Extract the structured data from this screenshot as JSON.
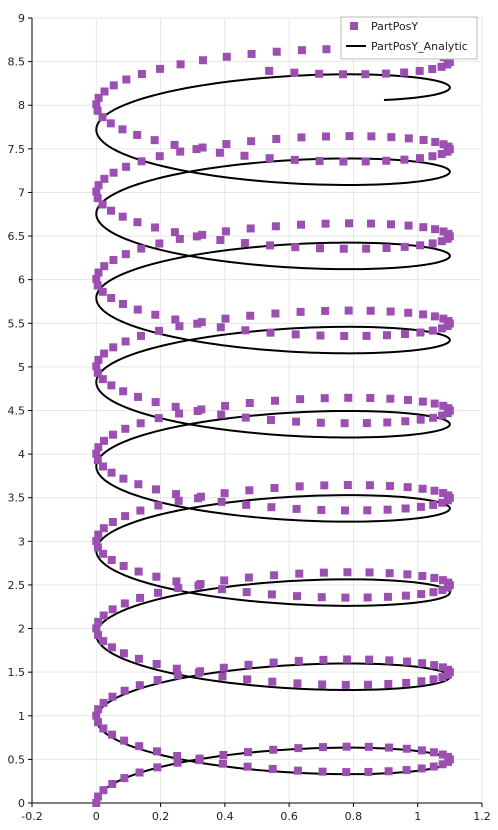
{
  "chart_data": {
    "type": "scatter",
    "title": "",
    "xlabel": "",
    "ylabel": "",
    "xlim": [
      -0.2,
      1.2
    ],
    "ylim": [
      0,
      9
    ],
    "grid": true,
    "legend_position": "top-right",
    "x_ticks": [
      "-0.2",
      "0",
      "0.2",
      "0.4",
      "0.6",
      "0.8",
      "1",
      "1.2"
    ],
    "y_ticks": [
      "0",
      "0.5",
      "1",
      "1.5",
      "2",
      "2.5",
      "3",
      "3.5",
      "4",
      "4.5",
      "5",
      "5.5",
      "6",
      "6.5",
      "7",
      "7.5",
      "8",
      "8.5",
      "9"
    ],
    "series": [
      {
        "name": "PartPosY",
        "style": "markers",
        "color": "#9b4fb0",
        "curve": {
          "x_center": 0.55,
          "x_amplitude": 0.55,
          "y_start": 0.0,
          "rise_per_loop": 1.0,
          "wobble_amplitude": 0.72,
          "t_end_radians": 55.0,
          "points_per_loop": 44
        }
      },
      {
        "name": "PartPosY_Analytic",
        "style": "line",
        "color": "#000000",
        "curve": {
          "x_center": 0.55,
          "x_amplitude": 0.55,
          "y_start": 0.0,
          "rise_per_loop": 0.965,
          "wobble_amplitude": 0.72,
          "t_end_radians": 54.3
        }
      }
    ]
  }
}
